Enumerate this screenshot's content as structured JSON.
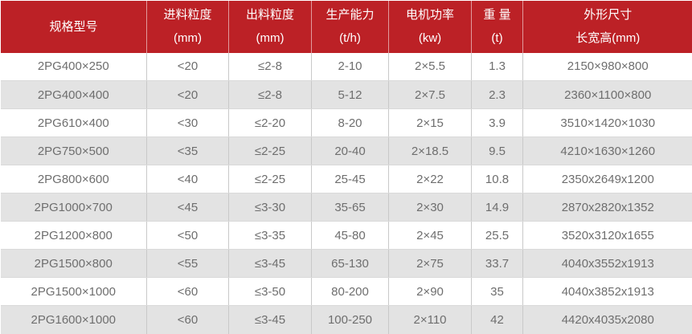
{
  "chart_data": {
    "type": "table",
    "columns": [
      {
        "key": "model",
        "title": "规格型号",
        "unit": ""
      },
      {
        "key": "feed_size",
        "title": "进料粒度",
        "unit": "(mm)"
      },
      {
        "key": "output_size",
        "title": "出料粒度",
        "unit": "(mm)"
      },
      {
        "key": "capacity",
        "title": "生产能力",
        "unit": "(t/h)"
      },
      {
        "key": "motor_power",
        "title": "电机功率",
        "unit": "(kw)"
      },
      {
        "key": "weight",
        "title": "重 量",
        "unit": "(t)"
      },
      {
        "key": "dimensions",
        "title": "外形尺寸",
        "unit": "长宽高(mm)"
      }
    ],
    "rows": [
      [
        "2PG400×250",
        "<20",
        "≤2-8",
        "2-10",
        "2×5.5",
        "1.3",
        "2150×980×800"
      ],
      [
        "2PG400×400",
        "<20",
        "≤2-8",
        "5-12",
        "2×7.5",
        "2.3",
        "2360×1100×800"
      ],
      [
        "2PG610×400",
        "<30",
        "≤2-20",
        "8-20",
        "2×15",
        "3.9",
        "3510×1420×1030"
      ],
      [
        "2PG750×500",
        "<35",
        "≤2-25",
        "20-40",
        "2×18.5",
        "9.5",
        "4210×1630×1260"
      ],
      [
        "2PG800×600",
        "<40",
        "≤2-25",
        "25-45",
        "2×22",
        "10.8",
        "2350x2649x1200"
      ],
      [
        "2PG1000×700",
        "<45",
        "≤3-30",
        "35-65",
        "2×30",
        "14.9",
        "2870x2820x1352"
      ],
      [
        "2PG1200×800",
        "<50",
        "≤3-35",
        "45-80",
        "2×45",
        "25.5",
        "3520x3120x1655"
      ],
      [
        "2PG1500×800",
        "<55",
        "≤3-45",
        "65-130",
        "2×75",
        "33.7",
        "4040x3552x1913"
      ],
      [
        "2PG1500×1000",
        "<60",
        "≤3-50",
        "80-200",
        "2×90",
        "35",
        "4040x3852x1913"
      ],
      [
        "2PG1600×1000",
        "<60",
        "≤3-45",
        "100-250",
        "2×110",
        "42",
        "4420x4035x2080"
      ]
    ]
  },
  "colors": {
    "header_bg": "#bc2126",
    "header_text": "#ffffff",
    "row_bg": "#ffffff",
    "row_alt_bg": "#e3e3e3",
    "body_text": "#6e6e6e",
    "grid_line": "#c9c9c9",
    "grid_line_h": "#d9d9d9"
  }
}
